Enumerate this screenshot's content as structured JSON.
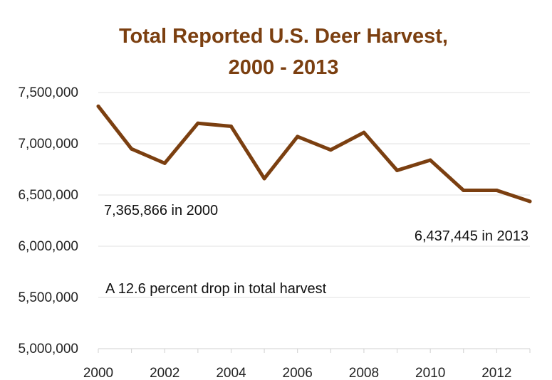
{
  "chart_data": {
    "type": "line",
    "title": "Total Reported U.S. Deer Harvest,",
    "subtitle": "2000 - 2013",
    "xlabel": "",
    "ylabel": "",
    "x": [
      2000,
      2001,
      2002,
      2003,
      2004,
      2005,
      2006,
      2007,
      2008,
      2009,
      2010,
      2011,
      2012,
      2013
    ],
    "series": [
      {
        "values": [
          7365866,
          6950000,
          6810000,
          7200000,
          7170000,
          6660000,
          7070000,
          6940000,
          7110000,
          6740000,
          6840000,
          6545000,
          6545000,
          6437445
        ]
      }
    ],
    "ylim": [
      5000000,
      7500000
    ],
    "yticks": [
      5000000,
      5500000,
      6000000,
      6500000,
      7000000,
      7500000
    ],
    "ytick_labels": [
      "5,000,000",
      "5,500,000",
      "6,000,000",
      "6,500,000",
      "7,000,000",
      "7,500,000"
    ],
    "xticks": [
      2000,
      2002,
      2004,
      2006,
      2008,
      2010,
      2012
    ],
    "xtick_labels": [
      "2000",
      "2002",
      "2004",
      "2006",
      "2008",
      "2010",
      "2012"
    ],
    "grid": true,
    "annotations": {
      "start_label": "7,365,866 in 2000",
      "end_label": "6,437,445 in 2013",
      "summary": "A 12.6 percent drop in total harvest"
    },
    "colors": {
      "line": "#7b3f10",
      "title": "#7b3f10",
      "summary": "#7b3f10",
      "grid": "#e2e2e2"
    }
  }
}
